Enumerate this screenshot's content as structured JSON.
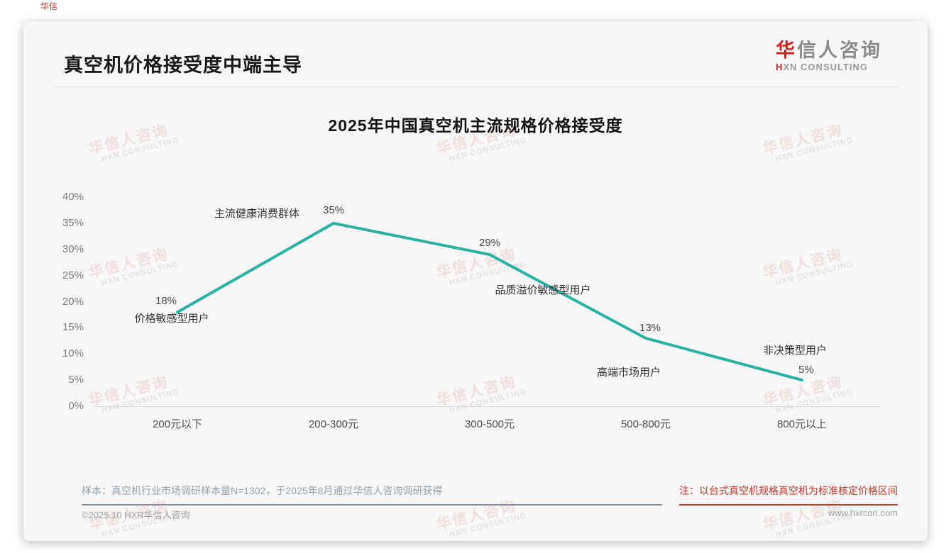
{
  "header": {
    "title": "真空机价格接受度中端主导",
    "logo": {
      "cn_first": "华",
      "cn_rest": "信人咨询",
      "en_first": "H",
      "en_rest": "XN CONSULTING"
    },
    "corner_mark": "华信"
  },
  "watermark": {
    "cn": "华信人咨询",
    "en": "HXN CONSULTING"
  },
  "chart_data": {
    "type": "line",
    "title": "2025年中国真空机主流规格价格接受度",
    "categories": [
      "200元以下",
      "200-300元",
      "300-500元",
      "500-800元",
      "800元以上"
    ],
    "values": [
      18,
      35,
      29,
      13,
      5
    ],
    "value_labels": [
      "18%",
      "35%",
      "29%",
      "13%",
      "5%"
    ],
    "point_annotations": [
      "价格敏感型用户",
      "主流健康消费群体",
      "品质溢价敏感型用户",
      "高端市场用户",
      "非决策型用户"
    ],
    "ylabel_ticks": [
      "40%",
      "35%",
      "30%",
      "25%",
      "20%",
      "15%",
      "10%",
      "5%",
      "0%"
    ],
    "ylim": [
      0,
      40
    ],
    "ytick_step": 5,
    "line_color": "#29b2a2",
    "grid": false,
    "legend": false,
    "xlabel": "",
    "ylabel": ""
  },
  "footer": {
    "sample_note": "样本：真空机行业市场调研样本量N=1302，于2025年8月通过华信人咨询调研获得",
    "price_note": "注：以台式真空机规格真空机为标准核定价格区间",
    "copyright": "©2025.10 HXR华信人咨询",
    "website": "www.hxrcon.com"
  }
}
